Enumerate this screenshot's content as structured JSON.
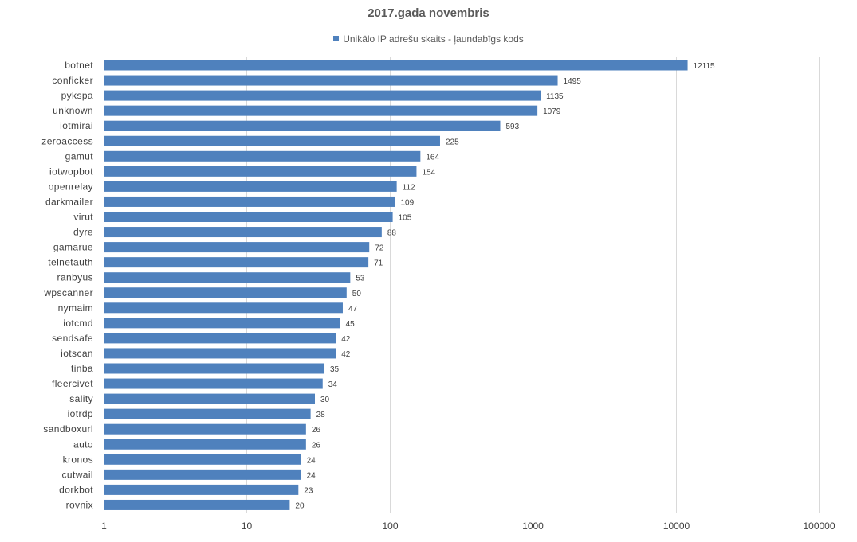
{
  "chart_data": {
    "type": "bar",
    "orientation": "horizontal",
    "title": "2017.gada novembris",
    "legend_position": "top",
    "series": [
      {
        "name": "Unikālo IP adrešu skaits -  ļaundabīgs kods",
        "color": "#4f81bd",
        "values": [
          12115,
          1495,
          1135,
          1079,
          593,
          225,
          164,
          154,
          112,
          109,
          105,
          88,
          72,
          71,
          53,
          50,
          47,
          45,
          42,
          42,
          35,
          34,
          30,
          28,
          26,
          26,
          24,
          24,
          23,
          20
        ]
      }
    ],
    "categories": [
      "botnet",
      "conficker",
      "pykspa",
      "unknown",
      "iotmirai",
      "zeroaccess",
      "gamut",
      "iotwopbot",
      "openrelay",
      "darkmailer",
      "virut",
      "dyre",
      "gamarue",
      "telnetauth",
      "ranbyus",
      "wpscanner",
      "nymaim",
      "iotcmd",
      "sendsafe",
      "iotscan",
      "tinba",
      "fleercivet",
      "sality",
      "iotrdp",
      "sandboxurl",
      "auto",
      "kronos",
      "cutwail",
      "dorkbot",
      "rovnix"
    ],
    "x_scale": "log",
    "xlim": [
      1,
      100000
    ],
    "x_ticks": [
      "1",
      "10",
      "100",
      "1000",
      "10000",
      "100000"
    ],
    "grid": true,
    "xlabel": "",
    "ylabel": ""
  }
}
